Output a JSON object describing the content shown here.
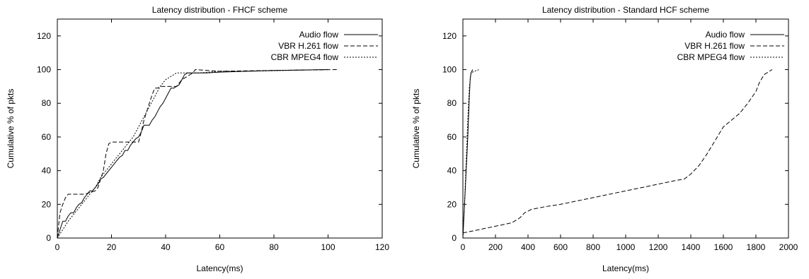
{
  "chart_data": [
    {
      "type": "line",
      "title": "Latency distribution - FHCF scheme",
      "xlabel": "Latency(ms)",
      "ylabel": "Cumulative % of pkts",
      "xlim": [
        0,
        120
      ],
      "ylim": [
        0,
        130
      ],
      "xticks": [
        0,
        20,
        40,
        60,
        80,
        100,
        120
      ],
      "yticks": [
        0,
        20,
        40,
        60,
        80,
        100,
        120
      ],
      "grid": false,
      "legend_position": "top-right",
      "series": [
        {
          "name": "Audio flow",
          "style": "solid",
          "points": [
            [
              0,
              0
            ],
            [
              1,
              5
            ],
            [
              2,
              10
            ],
            [
              3,
              10
            ],
            [
              4,
              13
            ],
            [
              5,
              15
            ],
            [
              6,
              15
            ],
            [
              7,
              18
            ],
            [
              8,
              20
            ],
            [
              9,
              21
            ],
            [
              10,
              24
            ],
            [
              11,
              26
            ],
            [
              12,
              28
            ],
            [
              13,
              28
            ],
            [
              14,
              30
            ],
            [
              15,
              32
            ],
            [
              16,
              35
            ],
            [
              17,
              36
            ],
            [
              18,
              38
            ],
            [
              19,
              40
            ],
            [
              20,
              42
            ],
            [
              21,
              44
            ],
            [
              22,
              46
            ],
            [
              23,
              48
            ],
            [
              24,
              49
            ],
            [
              25,
              52
            ],
            [
              26,
              52
            ],
            [
              27,
              55
            ],
            [
              28,
              57
            ],
            [
              29,
              59
            ],
            [
              30,
              60
            ],
            [
              31,
              63
            ],
            [
              32,
              67
            ],
            [
              33,
              67
            ],
            [
              34,
              67
            ],
            [
              35,
              70
            ],
            [
              36,
              72
            ],
            [
              37,
              75
            ],
            [
              38,
              78
            ],
            [
              39,
              80
            ],
            [
              40,
              83
            ],
            [
              41,
              86
            ],
            [
              42,
              89
            ],
            [
              43,
              89
            ],
            [
              44,
              90
            ],
            [
              45,
              91
            ],
            [
              46,
              94
            ],
            [
              47,
              97
            ],
            [
              48,
              98
            ],
            [
              50,
              98
            ],
            [
              55,
              98
            ],
            [
              60,
              98.5
            ],
            [
              70,
              99
            ],
            [
              80,
              99.5
            ],
            [
              100,
              100
            ]
          ]
        },
        {
          "name": "VBR H.261 flow",
          "style": "dashed",
          "points": [
            [
              0,
              0
            ],
            [
              0.5,
              8
            ],
            [
              1,
              15
            ],
            [
              2,
              20
            ],
            [
              3,
              24
            ],
            [
              4,
              26
            ],
            [
              10,
              26
            ],
            [
              12,
              27
            ],
            [
              14,
              28
            ],
            [
              15,
              30
            ],
            [
              16,
              35
            ],
            [
              17,
              40
            ],
            [
              18,
              50
            ],
            [
              19,
              56
            ],
            [
              20,
              57
            ],
            [
              30,
              57
            ],
            [
              31,
              63
            ],
            [
              32,
              70
            ],
            [
              33,
              75
            ],
            [
              34,
              80
            ],
            [
              35,
              85
            ],
            [
              36,
              89
            ],
            [
              37,
              89
            ],
            [
              38,
              90
            ],
            [
              44,
              90
            ],
            [
              46,
              94
            ],
            [
              48,
              96
            ],
            [
              50,
              98
            ],
            [
              51,
              100
            ],
            [
              60,
              99
            ],
            [
              80,
              99.5
            ],
            [
              104,
              100
            ]
          ]
        },
        {
          "name": "CBR MPEG4 flow",
          "style": "dotted",
          "points": [
            [
              0,
              0
            ],
            [
              2,
              5
            ],
            [
              4,
              10
            ],
            [
              6,
              14
            ],
            [
              8,
              18
            ],
            [
              10,
              22
            ],
            [
              12,
              26
            ],
            [
              14,
              30
            ],
            [
              16,
              36
            ],
            [
              18,
              40
            ],
            [
              20,
              44
            ],
            [
              22,
              48
            ],
            [
              24,
              52
            ],
            [
              26,
              56
            ],
            [
              28,
              60
            ],
            [
              30,
              66
            ],
            [
              32,
              72
            ],
            [
              34,
              78
            ],
            [
              36,
              84
            ],
            [
              38,
              90
            ],
            [
              40,
              94
            ],
            [
              42,
              96
            ],
            [
              44,
              98
            ],
            [
              48,
              98
            ],
            [
              52,
              98
            ],
            [
              60,
              99
            ],
            [
              70,
              99
            ],
            [
              100,
              100
            ]
          ]
        }
      ]
    },
    {
      "type": "line",
      "title": "Latency distribution - Standard HCF scheme",
      "xlabel": "Latency(ms)",
      "ylabel": "Cumulative % of pkts",
      "xlim": [
        0,
        2000
      ],
      "ylim": [
        0,
        130
      ],
      "xticks": [
        0,
        200,
        400,
        600,
        800,
        1000,
        1200,
        1400,
        1600,
        1800,
        2000
      ],
      "yticks": [
        0,
        20,
        40,
        60,
        80,
        100,
        120
      ],
      "grid": false,
      "legend_position": "top-right",
      "series": [
        {
          "name": "Audio flow",
          "style": "solid",
          "points": [
            [
              0,
              0
            ],
            [
              5,
              10
            ],
            [
              10,
              20
            ],
            [
              15,
              30
            ],
            [
              20,
              40
            ],
            [
              25,
              50
            ],
            [
              30,
              60
            ],
            [
              35,
              72
            ],
            [
              40,
              85
            ],
            [
              45,
              95
            ],
            [
              50,
              98
            ],
            [
              60,
              100
            ]
          ]
        },
        {
          "name": "VBR H.261 flow",
          "style": "dashed",
          "points": [
            [
              0,
              3
            ],
            [
              50,
              4
            ],
            [
              100,
              5
            ],
            [
              150,
              6
            ],
            [
              200,
              7
            ],
            [
              250,
              8
            ],
            [
              300,
              9
            ],
            [
              350,
              12
            ],
            [
              380,
              15
            ],
            [
              420,
              17
            ],
            [
              500,
              18.5
            ],
            [
              600,
              20
            ],
            [
              700,
              22
            ],
            [
              800,
              24
            ],
            [
              900,
              26
            ],
            [
              1000,
              28
            ],
            [
              1100,
              30
            ],
            [
              1200,
              32
            ],
            [
              1300,
              34
            ],
            [
              1360,
              35
            ],
            [
              1400,
              38
            ],
            [
              1450,
              43
            ],
            [
              1500,
              50
            ],
            [
              1550,
              58
            ],
            [
              1600,
              66
            ],
            [
              1650,
              70
            ],
            [
              1700,
              74
            ],
            [
              1750,
              80
            ],
            [
              1800,
              87
            ],
            [
              1820,
              92
            ],
            [
              1850,
              97
            ],
            [
              1900,
              100
            ]
          ]
        },
        {
          "name": "CBR MPEG4 flow",
          "style": "dotted",
          "points": [
            [
              0,
              0
            ],
            [
              10,
              20
            ],
            [
              20,
              45
            ],
            [
              30,
              70
            ],
            [
              40,
              90
            ],
            [
              50,
              98
            ],
            [
              70,
              99
            ],
            [
              100,
              100
            ]
          ]
        }
      ]
    }
  ]
}
